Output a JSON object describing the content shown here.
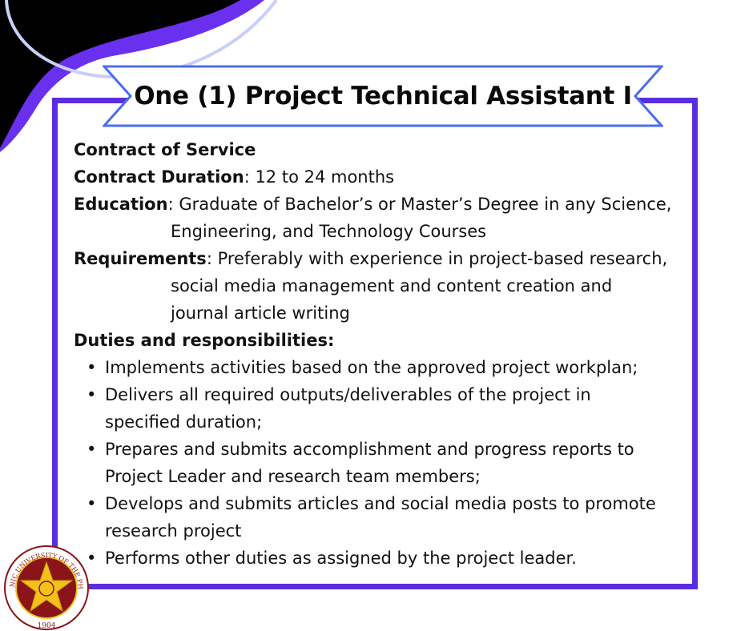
{
  "colors": {
    "frame": "#5a2ee0",
    "banner_stroke": "#4a6cf0",
    "corner_black": "#000000",
    "corner_purple": "#6a30f0",
    "corner_light": "#c9cff7",
    "seal_maroon": "#8a1418",
    "seal_gold": "#f2c21b"
  },
  "title": "One (1) Project Technical Assistant I",
  "contract_type": "Contract of Service",
  "duration": {
    "label": "Contract Duration",
    "value": ": 12 to 24 months"
  },
  "education": {
    "label": "Education",
    "lines": [
      ": Graduate of Bachelor’s or Master’s Degree in any Science,",
      "Engineering, and Technology Courses"
    ]
  },
  "requirements": {
    "label": "Requirements",
    "lines": [
      ": Preferably with experience in project-based research,",
      "social media management and content creation and",
      "journal article writing"
    ]
  },
  "duties": {
    "heading": "Duties and responsibilities:",
    "bullet": "•",
    "items": [
      {
        "lines": [
          "Implements activities based on the approved project workplan;"
        ]
      },
      {
        "lines": [
          "Delivers all required outputs/deliverables of the project in",
          "specified duration;"
        ]
      },
      {
        "lines": [
          "Prepares and submits accomplishment and progress reports to",
          "Project Leader and research team members;"
        ]
      },
      {
        "lines": [
          "Develops and submits articles and social media posts to promote",
          "research project"
        ]
      },
      {
        "lines": [
          "Performs other duties as assigned by the project leader."
        ]
      }
    ]
  },
  "seal": {
    "icon": "university-seal-icon",
    "ring_text": "POLYTECHNIC UNIVERSITY OF THE PHILIPPINES",
    "year": "1904"
  }
}
